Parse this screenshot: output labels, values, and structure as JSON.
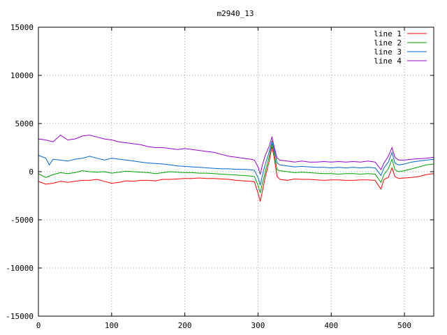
{
  "chart_data": {
    "type": "line",
    "title": "m2940_13",
    "xlabel": "",
    "ylabel": "",
    "xlim": [
      0,
      540
    ],
    "ylim": [
      -15000,
      15000
    ],
    "x_ticks": [
      0,
      100,
      200,
      300,
      400,
      500
    ],
    "y_ticks": [
      -15000,
      -10000,
      -5000,
      0,
      5000,
      10000,
      15000
    ],
    "grid": true,
    "legend_position": "top-right",
    "series": [
      {
        "name": "line 1",
        "color": "#ff0000",
        "points": [
          [
            0,
            -1000
          ],
          [
            10,
            -1300
          ],
          [
            20,
            -1200
          ],
          [
            30,
            -1000
          ],
          [
            40,
            -1100
          ],
          [
            50,
            -1000
          ],
          [
            60,
            -900
          ],
          [
            70,
            -900
          ],
          [
            80,
            -800
          ],
          [
            90,
            -1000
          ],
          [
            100,
            -1200
          ],
          [
            110,
            -1100
          ],
          [
            120,
            -950
          ],
          [
            130,
            -1000
          ],
          [
            140,
            -900
          ],
          [
            150,
            -900
          ],
          [
            160,
            -950
          ],
          [
            170,
            -800
          ],
          [
            180,
            -800
          ],
          [
            190,
            -750
          ],
          [
            200,
            -700
          ],
          [
            210,
            -700
          ],
          [
            220,
            -650
          ],
          [
            230,
            -700
          ],
          [
            240,
            -700
          ],
          [
            250,
            -750
          ],
          [
            260,
            -800
          ],
          [
            270,
            -900
          ],
          [
            280,
            -950
          ],
          [
            290,
            -1000
          ],
          [
            295,
            -1050
          ],
          [
            300,
            -2200
          ],
          [
            303,
            -3100
          ],
          [
            306,
            -2000
          ],
          [
            310,
            -500
          ],
          [
            315,
            1000
          ],
          [
            319,
            2600
          ],
          [
            322,
            1500
          ],
          [
            326,
            -500
          ],
          [
            330,
            -800
          ],
          [
            340,
            -900
          ],
          [
            350,
            -750
          ],
          [
            360,
            -800
          ],
          [
            370,
            -800
          ],
          [
            380,
            -850
          ],
          [
            390,
            -900
          ],
          [
            400,
            -850
          ],
          [
            410,
            -850
          ],
          [
            420,
            -900
          ],
          [
            430,
            -900
          ],
          [
            440,
            -850
          ],
          [
            450,
            -850
          ],
          [
            460,
            -900
          ],
          [
            465,
            -1500
          ],
          [
            468,
            -1800
          ],
          [
            472,
            -800
          ],
          [
            478,
            -600
          ],
          [
            483,
            400
          ],
          [
            487,
            -500
          ],
          [
            492,
            -700
          ],
          [
            500,
            -650
          ],
          [
            510,
            -600
          ],
          [
            520,
            -500
          ],
          [
            530,
            -300
          ],
          [
            540,
            -200
          ]
        ]
      },
      {
        "name": "line 2",
        "color": "#00a000",
        "points": [
          [
            0,
            -200
          ],
          [
            10,
            -600
          ],
          [
            20,
            -300
          ],
          [
            30,
            -100
          ],
          [
            40,
            -200
          ],
          [
            50,
            -100
          ],
          [
            60,
            100
          ],
          [
            70,
            0
          ],
          [
            80,
            -50
          ],
          [
            90,
            0
          ],
          [
            100,
            -150
          ],
          [
            110,
            -50
          ],
          [
            120,
            50
          ],
          [
            130,
            0
          ],
          [
            140,
            -50
          ],
          [
            150,
            -100
          ],
          [
            160,
            -200
          ],
          [
            170,
            -100
          ],
          [
            180,
            0
          ],
          [
            190,
            -50
          ],
          [
            200,
            -100
          ],
          [
            210,
            -100
          ],
          [
            220,
            -150
          ],
          [
            230,
            -150
          ],
          [
            240,
            -200
          ],
          [
            250,
            -250
          ],
          [
            260,
            -300
          ],
          [
            270,
            -350
          ],
          [
            280,
            -400
          ],
          [
            290,
            -450
          ],
          [
            295,
            -500
          ],
          [
            300,
            -1400
          ],
          [
            303,
            -2200
          ],
          [
            306,
            -1200
          ],
          [
            310,
            0
          ],
          [
            315,
            1500
          ],
          [
            319,
            2900
          ],
          [
            322,
            1900
          ],
          [
            326,
            200
          ],
          [
            330,
            100
          ],
          [
            340,
            0
          ],
          [
            350,
            -100
          ],
          [
            360,
            -50
          ],
          [
            370,
            -100
          ],
          [
            380,
            -150
          ],
          [
            390,
            -200
          ],
          [
            400,
            -200
          ],
          [
            410,
            -250
          ],
          [
            420,
            -200
          ],
          [
            430,
            -200
          ],
          [
            440,
            -250
          ],
          [
            450,
            -200
          ],
          [
            460,
            -250
          ],
          [
            465,
            -800
          ],
          [
            468,
            -1100
          ],
          [
            472,
            -300
          ],
          [
            478,
            300
          ],
          [
            483,
            1300
          ],
          [
            487,
            200
          ],
          [
            492,
            0
          ],
          [
            500,
            100
          ],
          [
            510,
            300
          ],
          [
            520,
            500
          ],
          [
            530,
            700
          ],
          [
            540,
            800
          ]
        ]
      },
      {
        "name": "line 3",
        "color": "#0066cc",
        "points": [
          [
            0,
            1700
          ],
          [
            10,
            1400
          ],
          [
            15,
            700
          ],
          [
            20,
            1300
          ],
          [
            30,
            1200
          ],
          [
            40,
            1100
          ],
          [
            50,
            1300
          ],
          [
            60,
            1400
          ],
          [
            70,
            1600
          ],
          [
            80,
            1400
          ],
          [
            90,
            1200
          ],
          [
            100,
            1400
          ],
          [
            110,
            1300
          ],
          [
            120,
            1200
          ],
          [
            130,
            1100
          ],
          [
            140,
            1000
          ],
          [
            150,
            900
          ],
          [
            160,
            850
          ],
          [
            170,
            800
          ],
          [
            180,
            700
          ],
          [
            190,
            600
          ],
          [
            200,
            550
          ],
          [
            210,
            500
          ],
          [
            220,
            450
          ],
          [
            230,
            400
          ],
          [
            240,
            350
          ],
          [
            250,
            300
          ],
          [
            260,
            300
          ],
          [
            270,
            250
          ],
          [
            280,
            250
          ],
          [
            290,
            200
          ],
          [
            295,
            150
          ],
          [
            300,
            -600
          ],
          [
            303,
            -1400
          ],
          [
            306,
            -400
          ],
          [
            310,
            800
          ],
          [
            315,
            2000
          ],
          [
            319,
            3200
          ],
          [
            322,
            2300
          ],
          [
            326,
            900
          ],
          [
            330,
            700
          ],
          [
            340,
            600
          ],
          [
            350,
            500
          ],
          [
            360,
            550
          ],
          [
            370,
            500
          ],
          [
            380,
            450
          ],
          [
            390,
            450
          ],
          [
            400,
            400
          ],
          [
            410,
            450
          ],
          [
            420,
            400
          ],
          [
            430,
            450
          ],
          [
            440,
            400
          ],
          [
            450,
            450
          ],
          [
            460,
            400
          ],
          [
            465,
            -100
          ],
          [
            468,
            -400
          ],
          [
            472,
            400
          ],
          [
            478,
            1000
          ],
          [
            483,
            2000
          ],
          [
            487,
            900
          ],
          [
            492,
            700
          ],
          [
            500,
            800
          ],
          [
            510,
            1000
          ],
          [
            520,
            1100
          ],
          [
            530,
            1200
          ],
          [
            540,
            1300
          ]
        ]
      },
      {
        "name": "line 4",
        "color": "#9900cc",
        "points": [
          [
            0,
            3400
          ],
          [
            10,
            3300
          ],
          [
            20,
            3100
          ],
          [
            30,
            3800
          ],
          [
            40,
            3300
          ],
          [
            50,
            3400
          ],
          [
            60,
            3700
          ],
          [
            70,
            3800
          ],
          [
            80,
            3600
          ],
          [
            90,
            3400
          ],
          [
            100,
            3300
          ],
          [
            110,
            3100
          ],
          [
            120,
            3000
          ],
          [
            130,
            2900
          ],
          [
            140,
            2800
          ],
          [
            150,
            2600
          ],
          [
            160,
            2500
          ],
          [
            170,
            2500
          ],
          [
            180,
            2400
          ],
          [
            190,
            2300
          ],
          [
            200,
            2400
          ],
          [
            210,
            2300
          ],
          [
            220,
            2200
          ],
          [
            230,
            2100
          ],
          [
            240,
            2000
          ],
          [
            250,
            1800
          ],
          [
            260,
            1600
          ],
          [
            270,
            1500
          ],
          [
            280,
            1400
          ],
          [
            290,
            1300
          ],
          [
            295,
            1200
          ],
          [
            300,
            500
          ],
          [
            303,
            -300
          ],
          [
            306,
            700
          ],
          [
            310,
            1700
          ],
          [
            315,
            2600
          ],
          [
            319,
            3600
          ],
          [
            322,
            2600
          ],
          [
            326,
            1400
          ],
          [
            330,
            1200
          ],
          [
            340,
            1100
          ],
          [
            350,
            1000
          ],
          [
            360,
            1100
          ],
          [
            370,
            1000
          ],
          [
            380,
            1000
          ],
          [
            390,
            1050
          ],
          [
            400,
            1000
          ],
          [
            410,
            1050
          ],
          [
            420,
            1000
          ],
          [
            430,
            1050
          ],
          [
            440,
            1000
          ],
          [
            450,
            1100
          ],
          [
            460,
            1000
          ],
          [
            465,
            500
          ],
          [
            468,
            200
          ],
          [
            472,
            900
          ],
          [
            478,
            1600
          ],
          [
            483,
            2500
          ],
          [
            487,
            1500
          ],
          [
            492,
            1200
          ],
          [
            500,
            1200
          ],
          [
            510,
            1300
          ],
          [
            520,
            1350
          ],
          [
            530,
            1400
          ],
          [
            540,
            1500
          ]
        ]
      }
    ]
  }
}
